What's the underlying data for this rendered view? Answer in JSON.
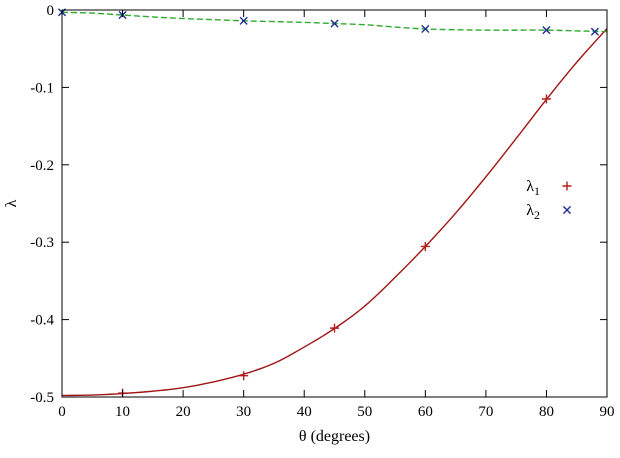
{
  "chart_data": {
    "type": "line",
    "title": "",
    "xlabel": "θ (degrees)",
    "ylabel": "λ",
    "xlim": [
      0,
      90
    ],
    "ylim": [
      -0.5,
      0
    ],
    "grid": false,
    "background_color": "#ffffff",
    "axis_color": "#000000",
    "xticks": {
      "values": [
        0,
        10,
        20,
        30,
        40,
        50,
        60,
        70,
        80,
        90
      ],
      "labels": [
        "0",
        "10",
        "20",
        "30",
        "40",
        "50",
        "60",
        "70",
        "80",
        "90"
      ]
    },
    "yticks": {
      "values": [
        0,
        -0.1,
        -0.2,
        -0.3,
        -0.4,
        -0.5
      ],
      "labels": [
        "0",
        "-0.1",
        "-0.2",
        "-0.3",
        "-0.4",
        "-0.5"
      ]
    },
    "legend": {
      "position": "inside-right-middle"
    },
    "series": [
      {
        "name": "λ1",
        "legend_base": "λ",
        "legend_sub": "1",
        "line_style": "solid",
        "line_color": "#a01414",
        "marker": "plus",
        "marker_color": "#b41e1e",
        "curve_x": [
          0,
          5,
          10,
          15,
          20,
          25,
          30,
          35,
          40,
          45,
          50,
          55,
          60,
          65,
          70,
          75,
          80,
          85,
          90
        ],
        "curve_y": [
          -0.498,
          -0.4975,
          -0.4955,
          -0.4925,
          -0.488,
          -0.4805,
          -0.4705,
          -0.4565,
          -0.4355,
          -0.4115,
          -0.3825,
          -0.3455,
          -0.3055,
          -0.2625,
          -0.2155,
          -0.166,
          -0.1155,
          -0.0675,
          -0.024
        ],
        "points_x": [
          10,
          30,
          45,
          60,
          80
        ],
        "points_y": [
          -0.495,
          -0.4725,
          -0.411,
          -0.3055,
          -0.115
        ]
      },
      {
        "name": "λ2",
        "legend_base": "λ",
        "legend_sub": "2",
        "line_style": "dashed",
        "line_color": "#2faa2f",
        "marker": "cross",
        "marker_color": "#1e2f8f",
        "curve_x": [
          0,
          5,
          10,
          15,
          20,
          25,
          30,
          35,
          40,
          45,
          50,
          55,
          60,
          65,
          70,
          75,
          80,
          85,
          90
        ],
        "curve_y": [
          -0.003,
          -0.004,
          -0.0065,
          -0.009,
          -0.011,
          -0.0125,
          -0.014,
          -0.015,
          -0.016,
          -0.0175,
          -0.019,
          -0.022,
          -0.0245,
          -0.0255,
          -0.026,
          -0.026,
          -0.026,
          -0.027,
          -0.028
        ],
        "points_x": [
          0,
          10,
          30,
          45,
          60,
          80,
          88
        ],
        "points_y": [
          -0.003,
          -0.0065,
          -0.014,
          -0.0175,
          -0.0245,
          -0.026,
          -0.028
        ]
      }
    ]
  }
}
